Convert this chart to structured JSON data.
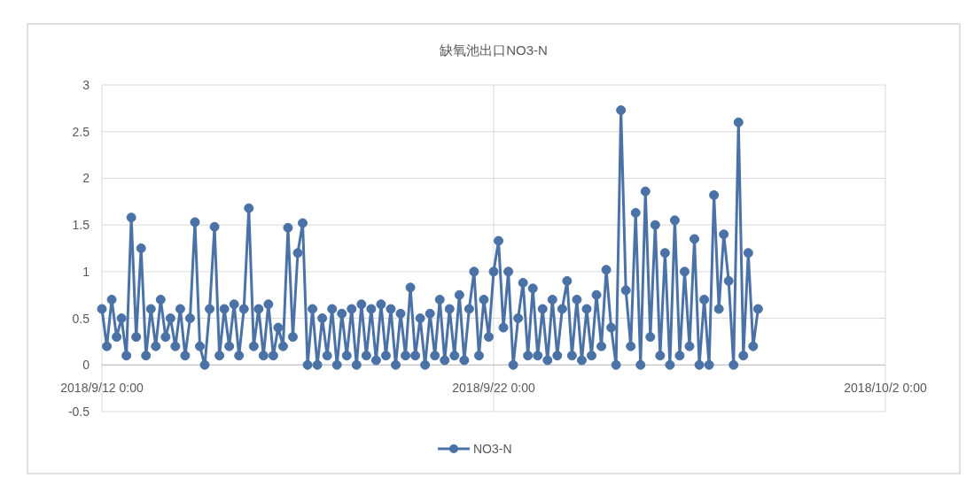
{
  "chart_data": {
    "type": "line",
    "title": "缺氧池出口NO3-N",
    "x": [
      "2018-09-12T00:00",
      "2018-09-12T03:00",
      "2018-09-12T06:00",
      "2018-09-12T09:00",
      "2018-09-12T12:00",
      "2018-09-12T15:00",
      "2018-09-12T18:00",
      "2018-09-12T21:00",
      "2018-09-13T00:00",
      "2018-09-13T03:00",
      "2018-09-13T06:00",
      "2018-09-13T09:00",
      "2018-09-13T12:00",
      "2018-09-13T15:00",
      "2018-09-13T18:00",
      "2018-09-13T21:00",
      "2018-09-14T00:00",
      "2018-09-14T03:00",
      "2018-09-14T06:00",
      "2018-09-14T09:00",
      "2018-09-14T12:00",
      "2018-09-14T15:00",
      "2018-09-14T18:00",
      "2018-09-14T21:00",
      "2018-09-15T00:00",
      "2018-09-15T03:00",
      "2018-09-15T06:00",
      "2018-09-15T09:00",
      "2018-09-15T12:00",
      "2018-09-15T15:00",
      "2018-09-15T18:00",
      "2018-09-15T21:00",
      "2018-09-16T00:00",
      "2018-09-16T03:00",
      "2018-09-16T06:00",
      "2018-09-16T09:00",
      "2018-09-16T12:00",
      "2018-09-16T15:00",
      "2018-09-16T18:00",
      "2018-09-16T21:00",
      "2018-09-17T00:00",
      "2018-09-17T03:00",
      "2018-09-17T06:00",
      "2018-09-17T09:00",
      "2018-09-17T12:00",
      "2018-09-17T15:00",
      "2018-09-17T18:00",
      "2018-09-17T21:00",
      "2018-09-18T00:00",
      "2018-09-18T03:00",
      "2018-09-18T06:00",
      "2018-09-18T09:00",
      "2018-09-18T12:00",
      "2018-09-18T15:00",
      "2018-09-18T18:00",
      "2018-09-18T21:00",
      "2018-09-19T00:00",
      "2018-09-19T03:00",
      "2018-09-19T06:00",
      "2018-09-19T09:00",
      "2018-09-19T12:00",
      "2018-09-19T15:00",
      "2018-09-19T18:00",
      "2018-09-19T21:00",
      "2018-09-20T00:00",
      "2018-09-20T03:00",
      "2018-09-20T06:00",
      "2018-09-20T09:00",
      "2018-09-20T12:00",
      "2018-09-20T15:00",
      "2018-09-20T18:00",
      "2018-09-20T21:00",
      "2018-09-21T00:00",
      "2018-09-21T03:00",
      "2018-09-21T06:00",
      "2018-09-21T09:00",
      "2018-09-21T12:00",
      "2018-09-21T15:00",
      "2018-09-21T18:00",
      "2018-09-21T21:00",
      "2018-09-22T00:00",
      "2018-09-22T03:00",
      "2018-09-22T06:00",
      "2018-09-22T09:00",
      "2018-09-22T12:00",
      "2018-09-22T15:00",
      "2018-09-22T18:00",
      "2018-09-22T21:00",
      "2018-09-23T00:00",
      "2018-09-23T03:00",
      "2018-09-23T06:00",
      "2018-09-23T09:00",
      "2018-09-23T12:00",
      "2018-09-23T15:00",
      "2018-09-23T18:00",
      "2018-09-23T21:00",
      "2018-09-24T00:00",
      "2018-09-24T03:00",
      "2018-09-24T06:00",
      "2018-09-24T09:00",
      "2018-09-24T12:00",
      "2018-09-24T15:00",
      "2018-09-24T18:00",
      "2018-09-24T21:00",
      "2018-09-25T00:00",
      "2018-09-25T03:00",
      "2018-09-25T06:00",
      "2018-09-25T09:00",
      "2018-09-25T12:00",
      "2018-09-25T15:00",
      "2018-09-25T18:00",
      "2018-09-25T21:00",
      "2018-09-26T00:00",
      "2018-09-26T03:00",
      "2018-09-26T06:00",
      "2018-09-26T09:00",
      "2018-09-26T12:00",
      "2018-09-26T15:00",
      "2018-09-26T18:00",
      "2018-09-26T21:00",
      "2018-09-27T00:00",
      "2018-09-27T03:00",
      "2018-09-27T06:00",
      "2018-09-27T09:00",
      "2018-09-27T12:00",
      "2018-09-27T15:00",
      "2018-09-27T18:00",
      "2018-09-27T21:00",
      "2018-09-28T00:00",
      "2018-09-28T03:00",
      "2018-09-28T06:00",
      "2018-09-28T09:00",
      "2018-09-28T12:00",
      "2018-09-28T15:00",
      "2018-09-28T18:00"
    ],
    "series": [
      {
        "name": "NO3-N",
        "color": "#4a72a6",
        "values": [
          0.6,
          0.2,
          0.7,
          0.3,
          0.5,
          0.1,
          1.58,
          0.3,
          1.25,
          0.1,
          0.6,
          0.2,
          0.7,
          0.3,
          0.5,
          0.2,
          0.6,
          0.1,
          0.5,
          1.53,
          0.2,
          0,
          0.6,
          1.48,
          0.1,
          0.6,
          0.2,
          0.65,
          0.1,
          0.6,
          1.68,
          0.2,
          0.6,
          0.1,
          0.65,
          0.1,
          0.4,
          0.2,
          1.47,
          0.3,
          1.2,
          1.52,
          0,
          0.6,
          0,
          0.5,
          0.1,
          0.6,
          0,
          0.55,
          0.1,
          0.6,
          0,
          0.65,
          0.1,
          0.6,
          0.05,
          0.65,
          0.1,
          0.6,
          0,
          0.55,
          0.1,
          0.83,
          0.1,
          0.5,
          0,
          0.55,
          0.1,
          0.7,
          0.05,
          0.6,
          0.1,
          0.75,
          0.05,
          0.6,
          1.0,
          0.1,
          0.7,
          0.3,
          1.0,
          1.33,
          0.4,
          1.0,
          0,
          0.5,
          0.88,
          0.1,
          0.82,
          0.1,
          0.6,
          0.05,
          0.7,
          0.1,
          0.6,
          0.9,
          0.1,
          0.7,
          0.05,
          0.6,
          0.1,
          0.75,
          0.2,
          1.02,
          0.4,
          0,
          2.73,
          0.8,
          0.2,
          1.63,
          0,
          1.86,
          0.3,
          1.5,
          0.1,
          1.2,
          0,
          1.55,
          0.1,
          1.0,
          0.2,
          1.35,
          0,
          0.7,
          0,
          1.82,
          0.6,
          1.4,
          0.9,
          0,
          2.6,
          0.1,
          1.2,
          0.2,
          0.6
        ]
      }
    ],
    "xlim": [
      "2018-09-12T00:00",
      "2018-10-02T00:00"
    ],
    "xticks": [
      {
        "value": "2018-09-12T00:00",
        "label": "2018/9/12 0:00"
      },
      {
        "value": "2018-09-22T00:00",
        "label": "2018/9/22 0:00"
      },
      {
        "value": "2018-10-02T00:00",
        "label": "2018/10/2 0:00"
      }
    ],
    "ylim": [
      -0.5,
      3
    ],
    "yticks": [
      -0.5,
      0,
      0.5,
      1,
      1.5,
      2,
      2.5,
      3
    ],
    "grid": true,
    "legend": "bottom",
    "marker": "circle",
    "line_style": "solid"
  }
}
